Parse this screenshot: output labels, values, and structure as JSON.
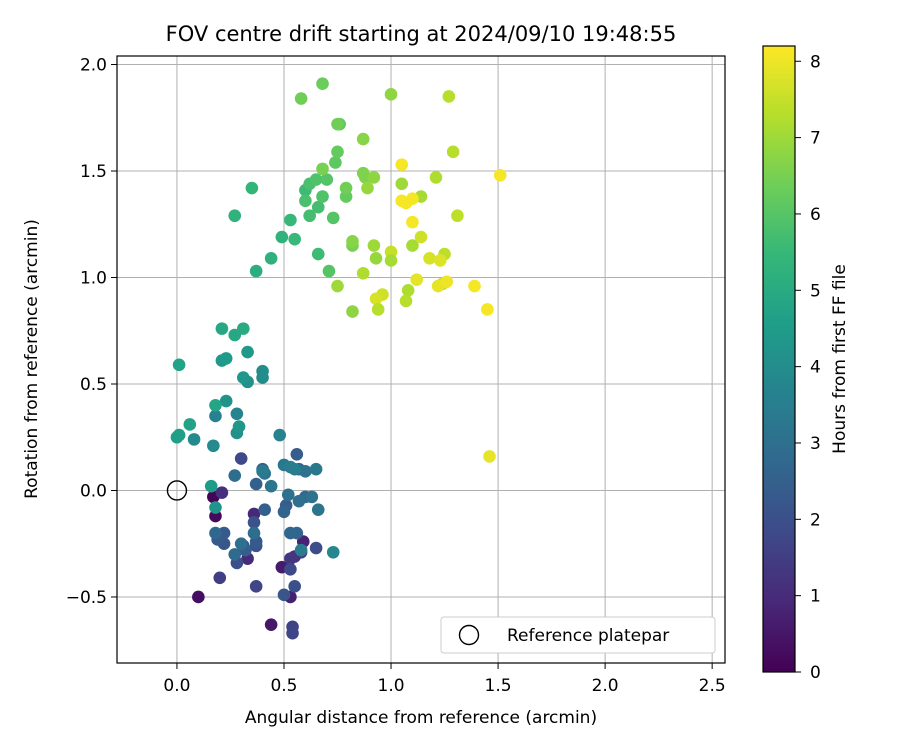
{
  "chart_data": {
    "type": "scatter",
    "title": "FOV centre drift starting at 2024/09/10 19:48:55",
    "xlabel": "Angular distance from reference (arcmin)",
    "ylabel": "Rotation from reference (arcmin)",
    "xlim": [
      -0.28,
      2.56
    ],
    "ylim": [
      -0.81,
      2.04
    ],
    "xticks": [
      0.0,
      0.5,
      1.0,
      1.5,
      2.0,
      2.5
    ],
    "xtick_labels": [
      "0.0",
      "0.5",
      "1.0",
      "1.5",
      "2.0",
      "2.5"
    ],
    "yticks": [
      -0.5,
      0.0,
      0.5,
      1.0,
      1.5,
      2.0
    ],
    "ytick_labels": [
      "−0.5",
      "0.0",
      "0.5",
      "1.0",
      "1.5",
      "2.0"
    ],
    "grid": true,
    "legend": {
      "placement": "lower-right",
      "entries": [
        "Reference platepar"
      ]
    },
    "reference_point": {
      "x": 0.0,
      "y": 0.0
    },
    "colorbar": {
      "label": "Hours from first FF file",
      "range": [
        0,
        8.2
      ],
      "ticks": [
        0,
        1,
        2,
        3,
        4,
        5,
        6,
        7,
        8
      ],
      "tick_labels": [
        "0",
        "1",
        "2",
        "3",
        "4",
        "5",
        "6",
        "7",
        "8"
      ],
      "colormap": [
        "#440154",
        "#482878",
        "#3e4a89",
        "#31688e",
        "#26828e",
        "#1f9e89",
        "#35b779",
        "#6ece58",
        "#b5de2b",
        "#fde725"
      ]
    },
    "points": [
      {
        "x": 0.17,
        "y": -0.03,
        "h": 0.1
      },
      {
        "x": 0.18,
        "y": -0.12,
        "h": 0.2
      },
      {
        "x": 0.1,
        "y": -0.5,
        "h": 0.3
      },
      {
        "x": 0.44,
        "y": -0.63,
        "h": 0.5
      },
      {
        "x": 0.49,
        "y": -0.36,
        "h": 0.6
      },
      {
        "x": 0.53,
        "y": -0.5,
        "h": 0.7
      },
      {
        "x": 0.59,
        "y": -0.24,
        "h": 0.8
      },
      {
        "x": 0.36,
        "y": -0.11,
        "h": 0.9
      },
      {
        "x": 0.33,
        "y": -0.32,
        "h": 1.0
      },
      {
        "x": 0.21,
        "y": -0.01,
        "h": 1.1
      },
      {
        "x": 0.55,
        "y": -0.31,
        "h": 1.2
      },
      {
        "x": 0.53,
        "y": -0.32,
        "h": 1.3
      },
      {
        "x": 0.58,
        "y": -0.29,
        "h": 1.4
      },
      {
        "x": 0.2,
        "y": -0.41,
        "h": 1.5
      },
      {
        "x": 0.54,
        "y": -0.64,
        "h": 1.6
      },
      {
        "x": 0.54,
        "y": -0.67,
        "h": 1.7
      },
      {
        "x": 0.37,
        "y": -0.45,
        "h": 1.7
      },
      {
        "x": 0.3,
        "y": 0.15,
        "h": 1.8
      },
      {
        "x": 0.53,
        "y": -0.37,
        "h": 1.8
      },
      {
        "x": 0.65,
        "y": -0.27,
        "h": 1.9
      },
      {
        "x": 0.28,
        "y": -0.34,
        "h": 2.0
      },
      {
        "x": 0.55,
        "y": -0.45,
        "h": 2.0
      },
      {
        "x": 0.31,
        "y": -0.26,
        "h": 2.0
      },
      {
        "x": 0.37,
        "y": -0.26,
        "h": 2.1
      },
      {
        "x": 0.36,
        "y": -0.15,
        "h": 2.1
      },
      {
        "x": 0.5,
        "y": -0.49,
        "h": 2.2
      },
      {
        "x": 0.22,
        "y": -0.25,
        "h": 2.2
      },
      {
        "x": 0.19,
        "y": -0.23,
        "h": 2.3
      },
      {
        "x": 0.37,
        "y": -0.24,
        "h": 2.3
      },
      {
        "x": 0.22,
        "y": -0.2,
        "h": 2.3
      },
      {
        "x": 0.32,
        "y": -0.28,
        "h": 2.4
      },
      {
        "x": 0.51,
        "y": -0.07,
        "h": 2.4
      },
      {
        "x": 0.56,
        "y": 0.17,
        "h": 2.4
      },
      {
        "x": 0.37,
        "y": 0.03,
        "h": 2.5
      },
      {
        "x": 0.41,
        "y": -0.09,
        "h": 2.5
      },
      {
        "x": 0.56,
        "y": -0.2,
        "h": 2.6
      },
      {
        "x": 0.5,
        "y": -0.1,
        "h": 2.6
      },
      {
        "x": 0.4,
        "y": 0.1,
        "h": 2.6
      },
      {
        "x": 0.53,
        "y": -0.2,
        "h": 2.7
      },
      {
        "x": 0.57,
        "y": 0.1,
        "h": 2.7
      },
      {
        "x": 0.18,
        "y": -0.2,
        "h": 2.7
      },
      {
        "x": 0.27,
        "y": -0.3,
        "h": 2.8
      },
      {
        "x": 0.6,
        "y": -0.03,
        "h": 2.8
      },
      {
        "x": 0.27,
        "y": 0.07,
        "h": 2.9
      },
      {
        "x": 0.36,
        "y": -0.2,
        "h": 2.9
      },
      {
        "x": 0.3,
        "y": -0.25,
        "h": 3.0
      },
      {
        "x": 0.57,
        "y": -0.05,
        "h": 3.0
      },
      {
        "x": 0.52,
        "y": -0.02,
        "h": 3.0
      },
      {
        "x": 0.63,
        "y": -0.03,
        "h": 3.1
      },
      {
        "x": 0.41,
        "y": 0.08,
        "h": 3.1
      },
      {
        "x": 0.6,
        "y": 0.09,
        "h": 3.1
      },
      {
        "x": 0.66,
        "y": -0.09,
        "h": 3.2
      },
      {
        "x": 0.44,
        "y": 0.02,
        "h": 3.2
      },
      {
        "x": 0.5,
        "y": 0.12,
        "h": 3.3
      },
      {
        "x": 0.65,
        "y": 0.1,
        "h": 3.3
      },
      {
        "x": 0.4,
        "y": 0.09,
        "h": 3.4
      },
      {
        "x": 0.58,
        "y": -0.28,
        "h": 3.4
      },
      {
        "x": 0.53,
        "y": 0.11,
        "h": 3.5
      },
      {
        "x": 0.55,
        "y": 0.1,
        "h": 3.5
      },
      {
        "x": 0.48,
        "y": 0.26,
        "h": 3.6
      },
      {
        "x": 0.18,
        "y": 0.35,
        "h": 3.6
      },
      {
        "x": 0.28,
        "y": 0.36,
        "h": 3.7
      },
      {
        "x": 0.73,
        "y": -0.29,
        "h": 3.8
      },
      {
        "x": 0.17,
        "y": 0.21,
        "h": 3.9
      },
      {
        "x": 0.08,
        "y": 0.24,
        "h": 3.9
      },
      {
        "x": 0.4,
        "y": 0.53,
        "h": 4.0
      },
      {
        "x": 0.4,
        "y": 0.56,
        "h": 4.0
      },
      {
        "x": 0.33,
        "y": 0.51,
        "h": 4.1
      },
      {
        "x": 0.28,
        "y": 0.27,
        "h": 4.1
      },
      {
        "x": 0.23,
        "y": 0.42,
        "h": 4.2
      },
      {
        "x": 0.18,
        "y": -0.08,
        "h": 4.2
      },
      {
        "x": 0.29,
        "y": 0.3,
        "h": 4.3
      },
      {
        "x": 0.31,
        "y": 0.53,
        "h": 4.3
      },
      {
        "x": 0.33,
        "y": 0.65,
        "h": 4.4
      },
      {
        "x": 0.21,
        "y": 0.61,
        "h": 4.4
      },
      {
        "x": 0.23,
        "y": 0.62,
        "h": 4.5
      },
      {
        "x": 0.16,
        "y": 0.02,
        "h": 4.5
      },
      {
        "x": 0.01,
        "y": 0.26,
        "h": 4.6
      },
      {
        "x": 0.0,
        "y": 0.25,
        "h": 4.6
      },
      {
        "x": 0.06,
        "y": 0.31,
        "h": 4.7
      },
      {
        "x": 0.01,
        "y": 0.59,
        "h": 4.7
      },
      {
        "x": 0.18,
        "y": 0.4,
        "h": 4.8
      },
      {
        "x": 0.21,
        "y": 0.76,
        "h": 4.9
      },
      {
        "x": 0.27,
        "y": 0.73,
        "h": 4.9
      },
      {
        "x": 0.31,
        "y": 0.76,
        "h": 5.0
      },
      {
        "x": 0.37,
        "y": 1.03,
        "h": 5.1
      },
      {
        "x": 0.44,
        "y": 1.09,
        "h": 5.2
      },
      {
        "x": 0.49,
        "y": 1.19,
        "h": 5.3
      },
      {
        "x": 0.27,
        "y": 1.29,
        "h": 5.3
      },
      {
        "x": 0.35,
        "y": 1.42,
        "h": 5.4
      },
      {
        "x": 0.55,
        "y": 1.18,
        "h": 5.5
      },
      {
        "x": 0.53,
        "y": 1.27,
        "h": 5.5
      },
      {
        "x": 0.6,
        "y": 1.41,
        "h": 5.6
      },
      {
        "x": 0.66,
        "y": 1.11,
        "h": 5.6
      },
      {
        "x": 0.62,
        "y": 1.29,
        "h": 5.7
      },
      {
        "x": 0.66,
        "y": 1.33,
        "h": 5.7
      },
      {
        "x": 0.6,
        "y": 1.36,
        "h": 5.8
      },
      {
        "x": 0.62,
        "y": 1.44,
        "h": 5.8
      },
      {
        "x": 0.65,
        "y": 1.46,
        "h": 5.9
      },
      {
        "x": 0.68,
        "y": 1.38,
        "h": 5.9
      },
      {
        "x": 0.71,
        "y": 1.03,
        "h": 6.0
      },
      {
        "x": 0.73,
        "y": 1.28,
        "h": 6.0
      },
      {
        "x": 0.7,
        "y": 1.46,
        "h": 6.0
      },
      {
        "x": 0.74,
        "y": 1.54,
        "h": 6.1
      },
      {
        "x": 0.76,
        "y": 1.72,
        "h": 6.1
      },
      {
        "x": 0.75,
        "y": 1.59,
        "h": 6.2
      },
      {
        "x": 0.79,
        "y": 1.38,
        "h": 6.2
      },
      {
        "x": 0.68,
        "y": 1.91,
        "h": 6.3
      },
      {
        "x": 0.58,
        "y": 1.84,
        "h": 6.4
      },
      {
        "x": 0.79,
        "y": 1.42,
        "h": 6.4
      },
      {
        "x": 0.68,
        "y": 1.51,
        "h": 6.5
      },
      {
        "x": 0.82,
        "y": 1.15,
        "h": 6.5
      },
      {
        "x": 0.87,
        "y": 1.49,
        "h": 6.6
      },
      {
        "x": 0.88,
        "y": 1.47,
        "h": 6.6
      },
      {
        "x": 0.87,
        "y": 1.65,
        "h": 6.7
      },
      {
        "x": 0.82,
        "y": 1.17,
        "h": 6.7
      },
      {
        "x": 0.92,
        "y": 1.47,
        "h": 6.8
      },
      {
        "x": 1.0,
        "y": 1.86,
        "h": 6.8
      },
      {
        "x": 0.89,
        "y": 1.42,
        "h": 6.9
      },
      {
        "x": 0.93,
        "y": 1.09,
        "h": 6.9
      },
      {
        "x": 0.92,
        "y": 1.15,
        "h": 7.0
      },
      {
        "x": 1.05,
        "y": 1.44,
        "h": 7.0
      },
      {
        "x": 1.1,
        "y": 1.15,
        "h": 7.1
      },
      {
        "x": 1.14,
        "y": 1.38,
        "h": 7.1
      },
      {
        "x": 1.08,
        "y": 0.94,
        "h": 7.2
      },
      {
        "x": 1.21,
        "y": 1.47,
        "h": 7.2
      },
      {
        "x": 1.27,
        "y": 1.85,
        "h": 7.3
      },
      {
        "x": 1.29,
        "y": 1.59,
        "h": 7.3
      },
      {
        "x": 1.31,
        "y": 1.29,
        "h": 7.4
      },
      {
        "x": 1.25,
        "y": 1.11,
        "h": 7.4
      },
      {
        "x": 1.24,
        "y": 0.97,
        "h": 7.5
      },
      {
        "x": 1.14,
        "y": 1.19,
        "h": 7.6
      },
      {
        "x": 1.18,
        "y": 1.09,
        "h": 7.7
      },
      {
        "x": 1.23,
        "y": 1.08,
        "h": 7.8
      },
      {
        "x": 1.22,
        "y": 0.96,
        "h": 7.9
      },
      {
        "x": 1.26,
        "y": 0.98,
        "h": 8.0
      },
      {
        "x": 1.51,
        "y": 1.48,
        "h": 8.1
      },
      {
        "x": 1.46,
        "y": 0.16,
        "h": 7.9
      },
      {
        "x": 1.45,
        "y": 0.85,
        "h": 8.1
      },
      {
        "x": 1.39,
        "y": 0.96,
        "h": 8.1
      },
      {
        "x": 1.05,
        "y": 1.53,
        "h": 8.1
      },
      {
        "x": 1.05,
        "y": 1.36,
        "h": 8.1
      },
      {
        "x": 1.07,
        "y": 1.35,
        "h": 8.1
      },
      {
        "x": 1.1,
        "y": 1.26,
        "h": 8.1
      },
      {
        "x": 1.1,
        "y": 1.37,
        "h": 8.1
      },
      {
        "x": 1.12,
        "y": 0.99,
        "h": 7.9
      },
      {
        "x": 1.0,
        "y": 1.12,
        "h": 7.5
      },
      {
        "x": 0.96,
        "y": 0.92,
        "h": 7.6
      },
      {
        "x": 0.93,
        "y": 0.9,
        "h": 7.7
      },
      {
        "x": 0.94,
        "y": 0.85,
        "h": 7.3
      },
      {
        "x": 1.0,
        "y": 1.08,
        "h": 7.1
      },
      {
        "x": 1.07,
        "y": 0.89,
        "h": 7.3
      },
      {
        "x": 0.87,
        "y": 1.02,
        "h": 7.2
      },
      {
        "x": 0.75,
        "y": 0.96,
        "h": 7.0
      },
      {
        "x": 0.75,
        "y": 1.72,
        "h": 6.4
      },
      {
        "x": 0.82,
        "y": 0.84,
        "h": 6.8
      }
    ]
  }
}
